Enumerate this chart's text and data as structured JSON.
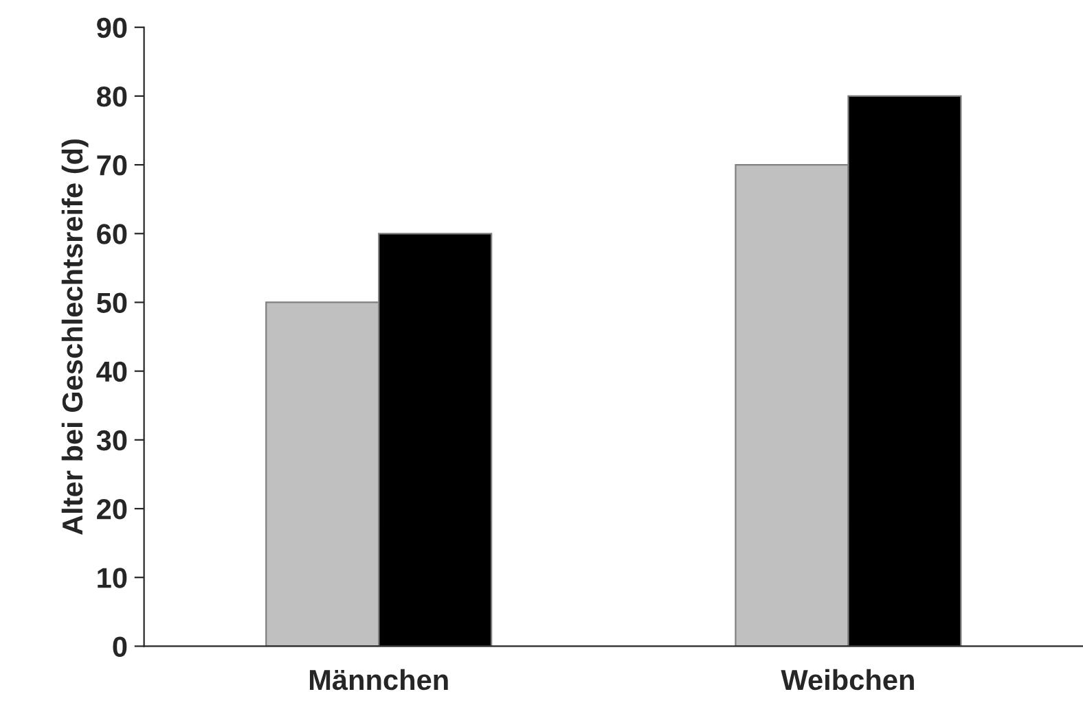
{
  "chart_data": {
    "type": "bar",
    "ylabel": "Alter bei Geschlechtsreife (d)",
    "categories": [
      "Männchen",
      "Weibchen"
    ],
    "series": [
      {
        "color": "#c0c0c0",
        "values": [
          50,
          70
        ]
      },
      {
        "color": "#000000",
        "values": [
          60,
          80
        ]
      }
    ],
    "ylim": [
      0,
      90
    ],
    "yticks": [
      0,
      10,
      20,
      30,
      40,
      50,
      60,
      70,
      80,
      90
    ],
    "grid": false,
    "legend": false
  }
}
